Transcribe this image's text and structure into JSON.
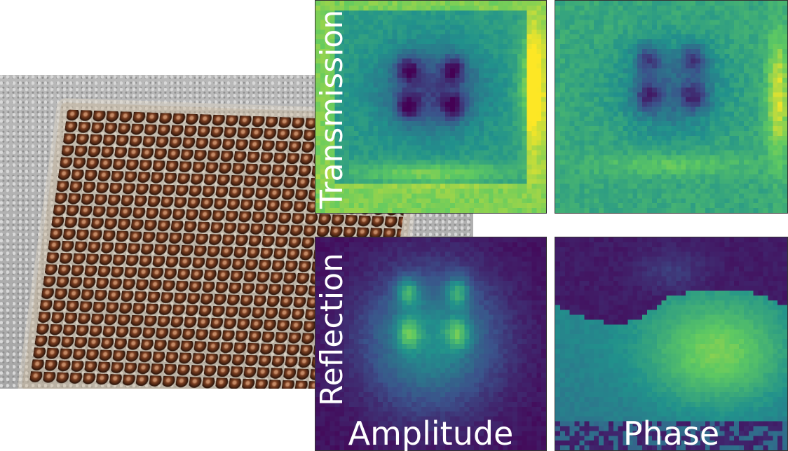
{
  "figure": {
    "row_labels": {
      "top": "Transmission",
      "bottom": "Reflection"
    },
    "column_labels": {
      "left": "Amplitude",
      "right": "Phase"
    },
    "photo_description_icon": "bead-lattice-photo",
    "colormap": [
      "#440154",
      "#3b528b",
      "#21918c",
      "#5ec962",
      "#fde725"
    ]
  },
  "chart_data": [
    {
      "type": "heatmap",
      "title": "",
      "row": "Transmission",
      "column": "Amplitude",
      "pattern": "trans-amp"
    },
    {
      "type": "heatmap",
      "title": "",
      "row": "Transmission",
      "column": "Phase",
      "pattern": "trans-phase"
    },
    {
      "type": "heatmap",
      "title": "",
      "row": "Reflection",
      "column": "Amplitude",
      "pattern": "refl-amp"
    },
    {
      "type": "heatmap",
      "title": "",
      "row": "Reflection",
      "column": "Phase",
      "pattern": "refl-phase"
    }
  ]
}
